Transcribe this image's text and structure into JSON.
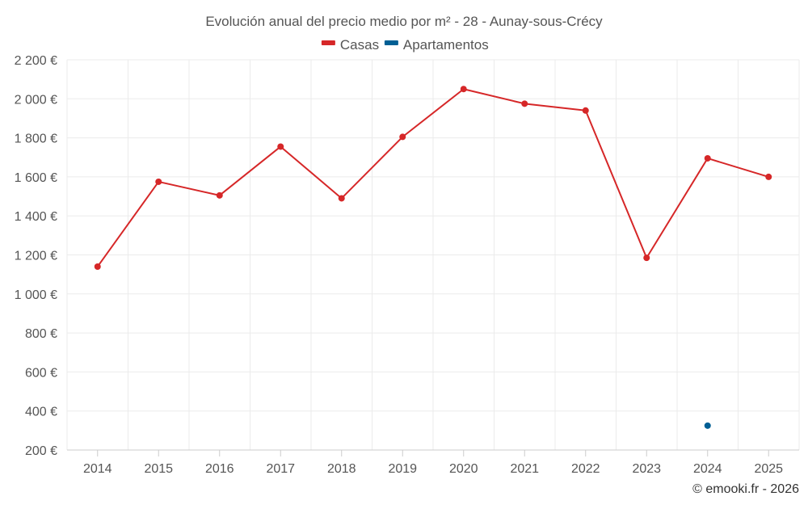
{
  "chart_data": {
    "type": "line",
    "title": "Evolución anual del precio medio por m² - 28 - Aunay-sous-Crécy",
    "xlabel": "",
    "ylabel": "",
    "categories": [
      "2014",
      "2015",
      "2016",
      "2017",
      "2018",
      "2019",
      "2020",
      "2021",
      "2022",
      "2023",
      "2024",
      "2025"
    ],
    "ylim": [
      200,
      2200
    ],
    "y_ticks": [
      200,
      400,
      600,
      800,
      1000,
      1200,
      1400,
      1600,
      1800,
      2000,
      2200
    ],
    "y_tick_labels": [
      "200 €",
      "400 €",
      "600 €",
      "800 €",
      "1 000 €",
      "1 200 €",
      "1 400 €",
      "1 600 €",
      "1 800 €",
      "2 000 €",
      "2 200 €"
    ],
    "grid": true,
    "legend_position": "top-center",
    "series": [
      {
        "name": "Casas",
        "color": "#d62728",
        "values": [
          1140,
          1575,
          1505,
          1755,
          1490,
          1805,
          2050,
          1975,
          1940,
          1185,
          1695,
          1600
        ]
      },
      {
        "name": "Apartamentos",
        "color": "#005f94",
        "values": [
          null,
          null,
          null,
          null,
          null,
          null,
          null,
          null,
          null,
          null,
          325,
          null
        ]
      }
    ],
    "credit": "© emooki.fr - 2026"
  }
}
